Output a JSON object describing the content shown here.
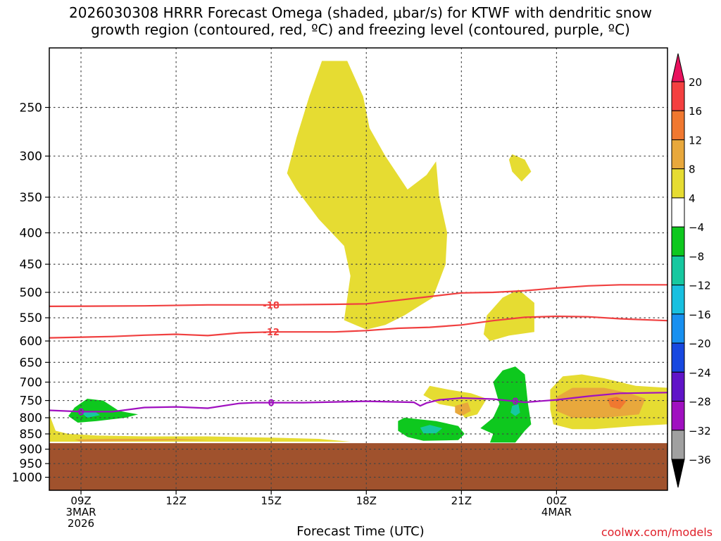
{
  "header": {
    "title_line1": "2026030308 HRRR Forecast Omega (shaded, μbar/s) for KTWF with dendritic snow",
    "title_line2": "growth region (contoured, red, ºC) and freezing level (contoured, purple, ºC)"
  },
  "footer": {
    "xlabel": "Forecast Time (UTC)",
    "credit": "coolwx.com/models"
  },
  "chart_data": {
    "type": "contour",
    "x_axis": {
      "unit": "forecast hour from 06Z 3MAR2026",
      "range": [
        0,
        19.5
      ],
      "ticks": [
        {
          "x": 1,
          "label": "09Z",
          "sub": [
            "3MAR",
            "2026"
          ]
        },
        {
          "x": 4,
          "label": "12Z",
          "sub": []
        },
        {
          "x": 7,
          "label": "15Z",
          "sub": []
        },
        {
          "x": 10,
          "label": "18Z",
          "sub": []
        },
        {
          "x": 13,
          "label": "21Z",
          "sub": []
        },
        {
          "x": 16,
          "label": "00Z",
          "sub": [
            "4MAR"
          ]
        }
      ]
    },
    "y_axis": {
      "unit": "hPa",
      "scale": "log-pressure",
      "range": [
        1050,
        200
      ],
      "ticks": [
        250,
        300,
        350,
        400,
        450,
        500,
        550,
        600,
        650,
        700,
        750,
        800,
        850,
        900,
        950,
        1000
      ]
    },
    "grid": true,
    "surface_color": "#a0522d",
    "surface_pressure": 880,
    "colorbar": {
      "labels": [
        "20",
        "16",
        "12",
        "8",
        "4",
        "−4",
        "−8",
        "−12",
        "−16",
        "−20",
        "−24",
        "−28",
        "−32",
        "−36"
      ],
      "colors": [
        "#e8115d",
        "#f44040",
        "#f07830",
        "#e8a83c",
        "#e6dc32",
        "#ffffff",
        "#0ec81e",
        "#16c8a0",
        "#18c0e0",
        "#1890f0",
        "#1848e0",
        "#6014c8",
        "#a010c0",
        "#a0a0a0",
        "#000000"
      ]
    },
    "omega_regions": [
      {
        "level": "4",
        "color": "#e6dc32",
        "points": [
          [
            7.5,
            320
          ],
          [
            7.8,
            280
          ],
          [
            8.2,
            240
          ],
          [
            8.6,
            210
          ],
          [
            9.4,
            210
          ],
          [
            9.9,
            240
          ],
          [
            10.1,
            270
          ],
          [
            10.6,
            300
          ],
          [
            11.3,
            340
          ],
          [
            11.9,
            322
          ],
          [
            12.2,
            306
          ],
          [
            12.3,
            350
          ],
          [
            12.55,
            400
          ],
          [
            12.5,
            450
          ],
          [
            12.1,
            510
          ],
          [
            11.7,
            525
          ],
          [
            11.2,
            545
          ],
          [
            10.6,
            565
          ],
          [
            10.0,
            575
          ],
          [
            9.3,
            555
          ],
          [
            9.5,
            470
          ],
          [
            9.3,
            420
          ],
          [
            8.5,
            380
          ],
          [
            7.8,
            340
          ]
        ]
      },
      {
        "level": "4",
        "color": "#e6dc32",
        "points": [
          [
            14.6,
            298
          ],
          [
            15.0,
            304
          ],
          [
            15.2,
            318
          ],
          [
            14.9,
            330
          ],
          [
            14.6,
            318
          ],
          [
            14.5,
            304
          ]
        ]
      },
      {
        "level": "4",
        "color": "#e6dc32",
        "points": [
          [
            13.8,
            545
          ],
          [
            14.3,
            510
          ],
          [
            14.8,
            495
          ],
          [
            15.3,
            520
          ],
          [
            15.3,
            580
          ],
          [
            14.5,
            588
          ],
          [
            13.9,
            600
          ],
          [
            13.7,
            585
          ]
        ]
      },
      {
        "level": "4",
        "color": "#e6dc32",
        "points": [
          [
            11.8,
            735
          ],
          [
            12.0,
            710
          ],
          [
            12.6,
            720
          ],
          [
            13.3,
            730
          ],
          [
            13.8,
            745
          ],
          [
            13.5,
            790
          ],
          [
            13.1,
            800
          ],
          [
            12.9,
            770
          ],
          [
            12.3,
            760
          ]
        ]
      },
      {
        "level": "4",
        "color": "#e6dc32",
        "points": [
          [
            15.8,
            720
          ],
          [
            16.2,
            685
          ],
          [
            16.8,
            680
          ],
          [
            17.5,
            690
          ],
          [
            18.5,
            710
          ],
          [
            19.5,
            715
          ],
          [
            19.5,
            820
          ],
          [
            18.5,
            825
          ],
          [
            17.2,
            835
          ],
          [
            16.5,
            835
          ],
          [
            15.9,
            820
          ],
          [
            15.8,
            775
          ]
        ]
      },
      {
        "level": "4",
        "color": "#e6dc32",
        "points": [
          [
            0,
            790
          ],
          [
            0.2,
            840
          ],
          [
            0.6,
            850
          ],
          [
            1.5,
            855
          ],
          [
            3.0,
            858
          ],
          [
            5.0,
            858
          ],
          [
            7.0,
            862
          ],
          [
            8.5,
            866
          ],
          [
            9.5,
            875
          ],
          [
            0,
            875
          ]
        ]
      },
      {
        "level": "8",
        "color": "#e8a83c",
        "points": [
          [
            16.0,
            740
          ],
          [
            16.5,
            715
          ],
          [
            17.5,
            715
          ],
          [
            18.3,
            730
          ],
          [
            18.8,
            745
          ],
          [
            18.6,
            790
          ],
          [
            17.5,
            800
          ],
          [
            16.5,
            800
          ],
          [
            16.0,
            780
          ]
        ]
      },
      {
        "level": "8",
        "color": "#e8a83c",
        "points": [
          [
            12.8,
            765
          ],
          [
            13.2,
            755
          ],
          [
            13.3,
            780
          ],
          [
            13.0,
            795
          ],
          [
            12.8,
            785
          ]
        ]
      },
      {
        "level": "12",
        "color": "#f07830",
        "points": [
          [
            17.6,
            745
          ],
          [
            17.9,
            740
          ],
          [
            18.2,
            752
          ],
          [
            18.0,
            775
          ],
          [
            17.7,
            768
          ]
        ]
      },
      {
        "level": "8",
        "color": "#e8a83c",
        "points": [
          [
            0.8,
            868
          ],
          [
            2.0,
            866
          ],
          [
            4.0,
            866
          ],
          [
            5.0,
            870
          ],
          [
            1.0,
            875
          ]
        ]
      },
      {
        "level": "-4",
        "color": "#0ec81e",
        "points": [
          [
            0.8,
            770
          ],
          [
            1.2,
            745
          ],
          [
            1.7,
            750
          ],
          [
            2.2,
            780
          ],
          [
            2.8,
            790
          ],
          [
            2.4,
            800
          ],
          [
            1.5,
            810
          ],
          [
            0.9,
            815
          ],
          [
            0.6,
            795
          ]
        ]
      },
      {
        "level": "-4",
        "color": "#0ec81e",
        "points": [
          [
            11.0,
            810
          ],
          [
            11.2,
            800
          ],
          [
            12.2,
            810
          ],
          [
            12.9,
            825
          ],
          [
            13.1,
            850
          ],
          [
            12.9,
            870
          ],
          [
            11.8,
            872
          ],
          [
            11.3,
            860
          ],
          [
            11.0,
            840
          ]
        ]
      },
      {
        "level": "-4",
        "color": "#0ec81e",
        "points": [
          [
            14.0,
            700
          ],
          [
            14.3,
            670
          ],
          [
            14.7,
            660
          ],
          [
            15.0,
            680
          ],
          [
            15.1,
            760
          ],
          [
            15.2,
            820
          ],
          [
            15.0,
            840
          ],
          [
            14.7,
            878
          ],
          [
            13.9,
            878
          ],
          [
            14.0,
            850
          ],
          [
            13.6,
            832
          ],
          [
            14.0,
            800
          ],
          [
            14.2,
            760
          ]
        ]
      },
      {
        "level": "-8",
        "color": "#16c8a0",
        "points": [
          [
            1.0,
            785
          ],
          [
            1.4,
            780
          ],
          [
            1.6,
            792
          ],
          [
            1.2,
            800
          ]
        ]
      },
      {
        "level": "-8",
        "color": "#16c8a0",
        "points": [
          [
            11.7,
            830
          ],
          [
            12.0,
            822
          ],
          [
            12.4,
            832
          ],
          [
            12.2,
            848
          ],
          [
            11.8,
            848
          ]
        ]
      },
      {
        "level": "-8",
        "color": "#16c8a0",
        "points": [
          [
            14.6,
            765
          ],
          [
            14.8,
            760
          ],
          [
            14.85,
            785
          ],
          [
            14.7,
            795
          ],
          [
            14.55,
            785
          ]
        ]
      }
    ],
    "series": [
      {
        "name": "-18",
        "color": "#f04040",
        "label_x": 7,
        "x": [
          0,
          3,
          5,
          7,
          9,
          10,
          11,
          12,
          13,
          14,
          15,
          16,
          17,
          18,
          19.5
        ],
        "y": [
          527,
          526,
          524,
          524,
          523,
          522,
          515,
          508,
          501,
          500,
          497,
          492,
          488,
          486,
          486
        ]
      },
      {
        "name": "-12",
        "color": "#f04040",
        "label_x": 7,
        "x": [
          0,
          2,
          3,
          4,
          5,
          6,
          7,
          9,
          10,
          11,
          12,
          13,
          14,
          15,
          16,
          17,
          18,
          19.5
        ],
        "y": [
          593,
          590,
          587,
          585,
          588,
          582,
          580,
          580,
          577,
          572,
          570,
          565,
          556,
          549,
          547,
          548,
          552,
          556
        ]
      },
      {
        "name": "0",
        "color": "#a010c0",
        "label_x": 1,
        "extra_labels": [
          7,
          14.7
        ],
        "x": [
          0,
          1,
          2,
          3,
          4,
          5,
          6,
          6.5,
          7,
          8,
          9,
          10,
          11,
          11.5,
          11.7,
          11.9,
          12.3,
          13,
          14,
          15,
          16,
          17,
          18,
          19.5
        ],
        "y": [
          778,
          782,
          782,
          770,
          768,
          772,
          758,
          756,
          756,
          756,
          754,
          752,
          754,
          755,
          765,
          757,
          748,
          743,
          746,
          755,
          748,
          738,
          730,
          728
        ]
      }
    ]
  }
}
